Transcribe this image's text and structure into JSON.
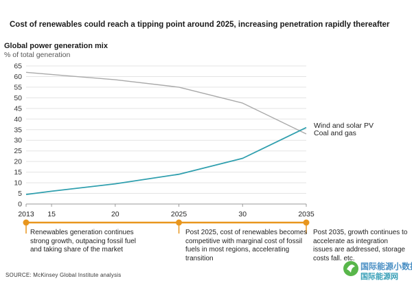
{
  "headline": "Cost of renewables could reach a tipping point around 2025, increasing penetration rapidly thereafter",
  "source": "SOURCE:  McKinsey Global Institute analysis",
  "watermark": {
    "line1": "国际能源小数据",
    "line2": "国际能源网"
  },
  "phases": [
    "Renewables generation continues strong growth, outpacing fossil fuel and taking share of the market",
    "Post 2025, cost of renewables becomes competitive with marginal cost of fossil fuels in most regions, accelerating transition",
    "Post 2035, growth continues to accelerate as integration issues are addressed, storage costs fall, etc."
  ],
  "colors": {
    "coal_gas": "#a9a9a9",
    "wind_solar": "#2f9fae",
    "timeline": "#e8961e",
    "grid": "#e3e3e3"
  },
  "chart_data": {
    "type": "line",
    "title": "Global power generation mix",
    "ylabel": "% of total generation",
    "x": [
      2013,
      2015,
      2020,
      2025,
      2030,
      2035
    ],
    "x_tick_labels": [
      "2013",
      "15",
      "20",
      "2025",
      "30",
      "2035"
    ],
    "xlim": [
      2013,
      2035
    ],
    "ylim": [
      0,
      65
    ],
    "y_ticks": [
      0,
      5,
      10,
      15,
      20,
      25,
      30,
      35,
      40,
      45,
      50,
      55,
      60,
      65
    ],
    "grid": true,
    "series": [
      {
        "name": "Coal and gas",
        "values": [
          62,
          61,
          58.5,
          55,
          47.5,
          33
        ]
      },
      {
        "name": "Wind and solar PV",
        "values": [
          4.5,
          6,
          9.5,
          14,
          21.5,
          36
        ]
      }
    ],
    "timeline_markers": [
      2013,
      2025,
      2035
    ]
  }
}
